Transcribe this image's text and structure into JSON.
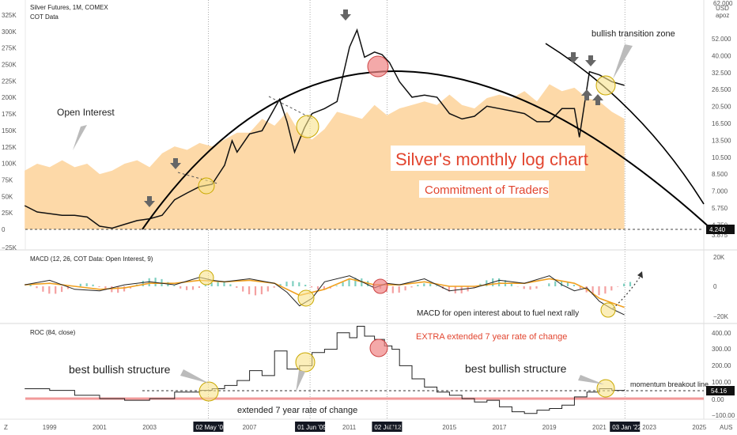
{
  "header": {
    "title": "Silver Futures, 1M, COMEX",
    "subtitle": "COT Data",
    "corner_label_1": "USD",
    "corner_label_2": "apoz"
  },
  "chart_data": [
    {
      "type": "area",
      "name": "price-pane",
      "left_axis_ticks": [
        "325K",
        "300K",
        "275K",
        "250K",
        "225K",
        "200K",
        "175K",
        "150K",
        "125K",
        "100K",
        "75K",
        "50K",
        "25K",
        "0",
        "−25K"
      ],
      "right_axis_ticks": [
        "52.000",
        "40.000",
        "32.500",
        "26.500",
        "20.500",
        "16.500",
        "13.500",
        "10.500",
        "8.500",
        "7.000",
        "5.750",
        "4.750",
        "3.875"
      ],
      "right_axis_top": "62.000",
      "price_marker": "4.240",
      "open_interest": {
        "x": [
          1998.0,
          1998.5,
          1999.0,
          1999.5,
          2000.0,
          2000.5,
          2001.0,
          2001.5,
          2002.0,
          2002.5,
          2003.0,
          2003.5,
          2004.0,
          2004.5,
          2005.0,
          2005.5,
          2006.0,
          2006.5,
          2007.0,
          2007.5,
          2008.0,
          2008.5,
          2009.0,
          2009.5,
          2010.0,
          2010.5,
          2011.0,
          2011.5,
          2012.0,
          2012.5,
          2013.0,
          2013.5,
          2014.0,
          2014.5,
          2015.0,
          2015.5,
          2016.0,
          2016.5,
          2017.0,
          2017.5,
          2018.0,
          2018.5,
          2019.0,
          2019.5,
          2020.0,
          2020.5,
          2021.0,
          2021.5,
          2022.0
        ],
        "y": [
          85,
          95,
          90,
          100,
          90,
          95,
          80,
          85,
          95,
          100,
          90,
          110,
          120,
          115,
          125,
          120,
          130,
          140,
          140,
          160,
          150,
          170,
          140,
          130,
          145,
          170,
          165,
          160,
          180,
          165,
          175,
          180,
          185,
          180,
          195,
          180,
          175,
          190,
          195,
          190,
          200,
          185,
          210,
          200,
          205,
          190,
          185,
          170,
          160
        ]
      },
      "price": {
        "x": [
          1998.0,
          1998.5,
          1999.0,
          1999.5,
          2000.0,
          2000.5,
          2001.0,
          2001.5,
          2002.0,
          2002.5,
          2003.0,
          2003.5,
          2004.0,
          2004.5,
          2005.0,
          2005.5,
          2006.0,
          2006.3,
          2006.5,
          2007.0,
          2007.5,
          2008.2,
          2008.5,
          2008.8,
          2009.2,
          2009.5,
          2010.0,
          2010.5,
          2011.0,
          2011.3,
          2011.6,
          2012.0,
          2012.3,
          2012.6,
          2013.0,
          2013.5,
          2014.0,
          2014.5,
          2015.0,
          2015.5,
          2016.0,
          2016.5,
          2017.0,
          2017.5,
          2018.0,
          2018.5,
          2019.0,
          2019.5,
          2020.0,
          2020.2,
          2020.6,
          2021.0,
          2021.5,
          2022.0
        ],
        "y": [
          5.6,
          5.2,
          5.1,
          5.0,
          5.0,
          4.9,
          4.4,
          4.3,
          4.5,
          4.7,
          4.8,
          5.0,
          6.0,
          6.5,
          7.0,
          7.2,
          9.0,
          12.0,
          10.5,
          13.0,
          13.5,
          19.5,
          15.0,
          10.5,
          14.0,
          16.5,
          17.5,
          19.0,
          36.0,
          44.0,
          32.0,
          34.0,
          33.0,
          30.0,
          24.0,
          20.0,
          20.5,
          20.0,
          16.5,
          15.5,
          16.0,
          18.0,
          17.5,
          17.0,
          16.5,
          15.0,
          15.0,
          17.5,
          17.5,
          12.5,
          27.0,
          26.0,
          24.0,
          23.0
        ]
      },
      "annotations": [
        "Open Interest",
        "bullish transition zone",
        "Silver's monthly log chart",
        "Commitment of Traders"
      ]
    },
    {
      "type": "line",
      "name": "macd-pane",
      "title": "MACD (12, 26, COT Data: Open Interest, 9)",
      "right_axis_ticks": [
        "20K",
        "0",
        "−20K"
      ],
      "macd": {
        "x": [
          1998.0,
          1999.0,
          2000.0,
          2001.0,
          2002.0,
          2003.0,
          2004.0,
          2005.0,
          2005.5,
          2006.0,
          2007.0,
          2008.0,
          2008.5,
          2009.0,
          2009.5,
          2010.0,
          2011.0,
          2011.5,
          2012.0,
          2012.5,
          2013.0,
          2014.0,
          2015.0,
          2016.0,
          2017.0,
          2018.0,
          2019.0,
          2019.5,
          2020.0,
          2020.5,
          2021.0,
          2021.5,
          2022.0
        ],
        "y": [
          1,
          4,
          -2,
          -3,
          1,
          3,
          1,
          6,
          4,
          3,
          5,
          2,
          -4,
          -13,
          -8,
          3,
          7,
          3,
          -1,
          2,
          1,
          5,
          -3,
          -1,
          4,
          2,
          7,
          1,
          -3,
          -1,
          -10,
          -15,
          -19
        ]
      },
      "signal": {
        "x": [
          1998.0,
          1999.0,
          2000.0,
          2001.0,
          2002.0,
          2003.0,
          2004.0,
          2005.0,
          2006.0,
          2007.0,
          2008.0,
          2009.0,
          2010.0,
          2011.0,
          2012.0,
          2013.0,
          2014.0,
          2015.0,
          2016.0,
          2017.0,
          2018.0,
          2019.0,
          2020.0,
          2020.5,
          2021.0,
          2022.0
        ],
        "y": [
          1,
          2,
          0,
          -2,
          -1,
          2,
          2,
          4,
          3,
          4,
          2,
          -6,
          -2,
          5,
          1,
          1,
          3,
          0,
          0,
          2,
          2,
          5,
          2,
          -2,
          -8,
          -14
        ]
      },
      "annotations": [
        "MACD for open interest about to fuel next rally"
      ]
    },
    {
      "type": "line",
      "name": "roc-pane",
      "title": "ROC (84, close)",
      "right_axis_ticks": [
        "400.00",
        "300.00",
        "200.00",
        "100.00",
        "50.00",
        "0.00",
        "−100.00"
      ],
      "roc_marker": "54.16",
      "roc": {
        "x": [
          1998.0,
          1999.0,
          2000.0,
          2001.0,
          2002.0,
          2003.0,
          2004.0,
          2005.0,
          2005.5,
          2006.0,
          2006.5,
          2007.0,
          2007.5,
          2008.0,
          2008.5,
          2009.0,
          2009.5,
          2010.0,
          2010.5,
          2011.0,
          2011.3,
          2011.6,
          2012.0,
          2012.4,
          2012.7,
          2013.0,
          2013.5,
          2014.0,
          2014.5,
          2015.0,
          2015.5,
          2016.0,
          2016.5,
          2017.0,
          2017.5,
          2018.0,
          2018.5,
          2019.0,
          2019.5,
          2020.0,
          2020.5,
          2021.0,
          2021.5,
          2022.0
        ],
        "y": [
          60,
          50,
          20,
          0,
          -10,
          0,
          40,
          50,
          60,
          80,
          110,
          170,
          140,
          290,
          180,
          200,
          280,
          300,
          400,
          370,
          440,
          380,
          360,
          320,
          300,
          200,
          120,
          70,
          40,
          20,
          0,
          -20,
          -10,
          -50,
          -80,
          -90,
          -70,
          -60,
          -40,
          10,
          40,
          60,
          50,
          54
        ]
      },
      "annotations": [
        "best bullish structure",
        "EXTRA extended 7 year rate of change",
        "best bullish structure",
        "momentum breakout line",
        "extended 7 year rate of change"
      ]
    }
  ],
  "x_axis": {
    "ticks": [
      "1999",
      "2001",
      "2003",
      "2007",
      "2011",
      "2015",
      "2017",
      "2019",
      "2021",
      "2023",
      "2025"
    ],
    "highlighted": [
      "02 May '05",
      "01 Jun '09",
      "02 Jul '12",
      "03 Jan '22"
    ],
    "right_marker_1": "2013",
    "right_marker_2": "AUS",
    "left_badge": "Z"
  },
  "colors": {
    "open_interest_fill": "#fdd9a8",
    "price_line": "#111111",
    "macd_line": "#222222",
    "signal_line": "#f0a020",
    "hist_pos": "#7ecfc0",
    "hist_neg": "#f4a0a0",
    "roc_line": "#222222",
    "zero_line": "#f29a9a",
    "annotation_red": "#e2452f",
    "circle_yellow": "#f8e38a",
    "circle_red": "#ef8585"
  }
}
